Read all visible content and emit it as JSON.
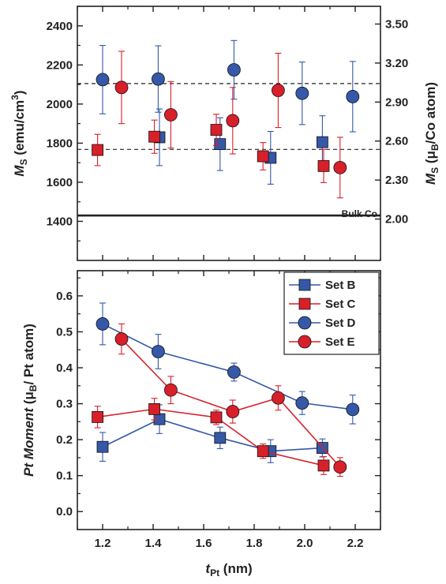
{
  "chart_data": [
    {
      "type": "scatter",
      "panel": "top",
      "ylabel": {
        "main": "M",
        "sub": "S",
        "unit": " (emu/cm",
        "sup": "3",
        "close": ")"
      },
      "ylabel_right": {
        "main": "M",
        "sub": "S",
        "unit": " (μ",
        "sub2": "B",
        "rest": "/Co atom)"
      },
      "xlim": [
        1.1,
        2.3
      ],
      "ylim": [
        1200,
        2500
      ],
      "yticks": [
        "1400",
        "1600",
        "1800",
        "2000",
        "2200",
        "2400"
      ],
      "right_ylim": [
        1.6818,
        3.6364
      ],
      "right_yticks": [
        "2.00",
        "2.30",
        "2.60",
        "2.90",
        "3.20",
        "3.50"
      ],
      "reference_lines": [
        {
          "value": 2105,
          "style": "dashed"
        },
        {
          "value": 1768,
          "style": "dashed"
        },
        {
          "value": 1430,
          "style": "solid",
          "label": "Bulk Co"
        }
      ],
      "series": [
        {
          "marker": "square",
          "color": "#3558a8",
          "points": [
            {
              "x": 1.425,
              "y": 1830,
              "err": 145
            },
            {
              "x": 1.665,
              "y": 1795,
              "err": 135
            },
            {
              "x": 1.865,
              "y": 1725,
              "err": 135
            },
            {
              "x": 2.07,
              "y": 1805,
              "err": 135
            }
          ]
        },
        {
          "marker": "square",
          "color": "#d8202a",
          "points": [
            {
              "x": 1.18,
              "y": 1765,
              "err": 80
            },
            {
              "x": 1.405,
              "y": 1833,
              "err": 85
            },
            {
              "x": 1.65,
              "y": 1868,
              "err": 80
            },
            {
              "x": 1.835,
              "y": 1733,
              "err": 70
            },
            {
              "x": 2.075,
              "y": 1683,
              "err": 85
            }
          ]
        },
        {
          "marker": "circle",
          "color": "#3558a8",
          "points": [
            {
              "x": 1.2,
              "y": 2125,
              "err": 175
            },
            {
              "x": 1.42,
              "y": 2128,
              "err": 170
            },
            {
              "x": 1.72,
              "y": 2175,
              "err": 150
            },
            {
              "x": 1.99,
              "y": 2055,
              "err": 160
            },
            {
              "x": 2.19,
              "y": 2038,
              "err": 180
            }
          ]
        },
        {
          "marker": "circle",
          "color": "#d8202a",
          "points": [
            {
              "x": 1.275,
              "y": 2085,
              "err": 185
            },
            {
              "x": 1.47,
              "y": 1945,
              "err": 170
            },
            {
              "x": 1.715,
              "y": 1915,
              "err": 170
            },
            {
              "x": 1.895,
              "y": 2070,
              "err": 190
            },
            {
              "x": 2.14,
              "y": 1675,
              "err": 155
            }
          ]
        }
      ]
    },
    {
      "type": "line",
      "panel": "bottom",
      "xlabel": {
        "main": "t",
        "sub": "Pt",
        "unit": " (nm)"
      },
      "ylabel": {
        "main": "Pt Moment",
        "unit": " (μ",
        "sub": "B",
        "rest": "/ Pt atom)"
      },
      "xlim": [
        1.1,
        2.3
      ],
      "ylim": [
        -0.05,
        0.67
      ],
      "xticks": [
        "1.2",
        "1.4",
        "1.6",
        "1.8",
        "2.0",
        "2.2"
      ],
      "yticks": [
        "0.0",
        "0.1",
        "0.2",
        "0.3",
        "0.4",
        "0.5",
        "0.6"
      ],
      "legend_position": "top-right",
      "series": [
        {
          "name": "Set B",
          "marker": "square",
          "color": "#3558a8",
          "points": [
            {
              "x": 1.2,
              "y": 0.18,
              "err": 0.04
            },
            {
              "x": 1.425,
              "y": 0.257,
              "err": 0.04
            },
            {
              "x": 1.665,
              "y": 0.205,
              "err": 0.03
            },
            {
              "x": 1.865,
              "y": 0.168,
              "err": 0.032
            },
            {
              "x": 2.07,
              "y": 0.177,
              "err": 0.025
            }
          ]
        },
        {
          "name": "Set C",
          "marker": "square",
          "color": "#d8202a",
          "points": [
            {
              "x": 1.18,
              "y": 0.263,
              "err": 0.03
            },
            {
              "x": 1.405,
              "y": 0.285,
              "err": 0.03
            },
            {
              "x": 1.65,
              "y": 0.262,
              "err": 0.02
            },
            {
              "x": 1.835,
              "y": 0.168,
              "err": 0.02
            },
            {
              "x": 2.075,
              "y": 0.128,
              "err": 0.025
            }
          ]
        },
        {
          "name": "Set D",
          "marker": "circle",
          "color": "#3558a8",
          "points": [
            {
              "x": 1.2,
              "y": 0.522,
              "err": 0.058
            },
            {
              "x": 1.42,
              "y": 0.445,
              "err": 0.048
            },
            {
              "x": 1.72,
              "y": 0.388,
              "err": 0.025
            },
            {
              "x": 1.99,
              "y": 0.302,
              "err": 0.032
            },
            {
              "x": 2.19,
              "y": 0.284,
              "err": 0.04
            }
          ]
        },
        {
          "name": "Set E",
          "marker": "circle",
          "color": "#d8202a",
          "points": [
            {
              "x": 1.275,
              "y": 0.48,
              "err": 0.042
            },
            {
              "x": 1.47,
              "y": 0.338,
              "err": 0.038
            },
            {
              "x": 1.715,
              "y": 0.278,
              "err": 0.032
            },
            {
              "x": 1.895,
              "y": 0.316,
              "err": 0.034
            },
            {
              "x": 2.14,
              "y": 0.124,
              "err": 0.026
            }
          ]
        }
      ]
    }
  ]
}
